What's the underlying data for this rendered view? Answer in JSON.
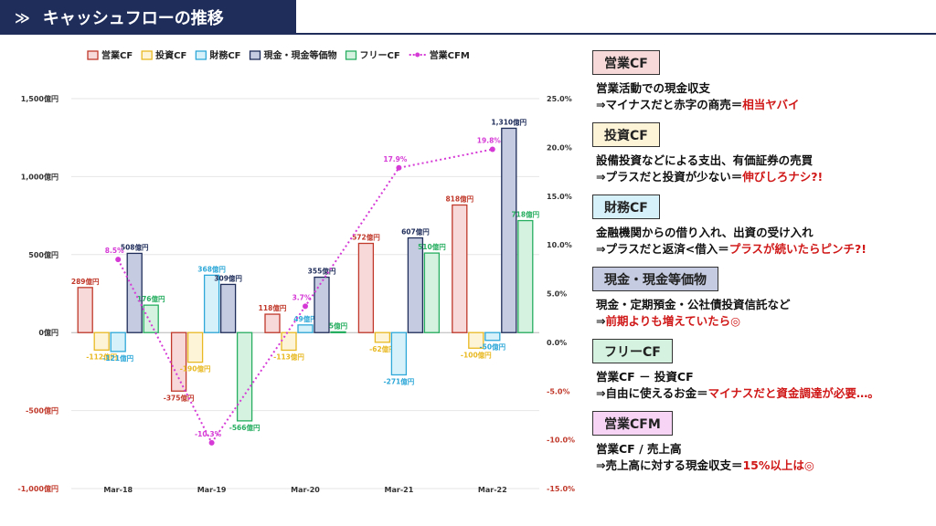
{
  "header": {
    "title": "キャッシュフローの推移",
    "icon": "double-chevron-right-icon"
  },
  "chart_data": {
    "type": "bar+line",
    "categories": [
      "Mar-18",
      "Mar-19",
      "Mar-20",
      "Mar-21",
      "Mar-22"
    ],
    "series": [
      {
        "name": "営業CF",
        "color": "#c0392b",
        "fill": "#f7d9d9",
        "values": [
          289,
          -375,
          118,
          572,
          818
        ],
        "labels": [
          "289億円",
          "-375億円",
          "118億円",
          "572億円",
          "818億円"
        ]
      },
      {
        "name": "投資CF",
        "color": "#e8b923",
        "fill": "#fdf3d6",
        "values": [
          -112,
          -190,
          -113,
          -62,
          -100
        ],
        "labels": [
          "-112億円",
          "-190億円",
          "-113億円",
          "-62億円",
          "-100億円"
        ]
      },
      {
        "name": "財務CF",
        "color": "#2ea8d8",
        "fill": "#d7f1fb",
        "values": [
          -121,
          368,
          49,
          -271,
          -50
        ],
        "labels": [
          "-121億円",
          "368億円",
          "49億円",
          "-271億円",
          "-50億円"
        ]
      },
      {
        "name": "現金・現金等価物",
        "color": "#1f2d5a",
        "fill": "#c5cbe0",
        "values": [
          508,
          309,
          355,
          607,
          1310
        ],
        "labels": [
          "508億円",
          "309億円",
          "355億円",
          "607億円",
          "1,310億円"
        ]
      },
      {
        "name": "フリーCF",
        "color": "#27ae60",
        "fill": "#d4f2df",
        "values": [
          176,
          -566,
          5,
          510,
          718
        ],
        "labels": [
          "176億円",
          "-566億円",
          "5億円",
          "510億円",
          "718億円"
        ]
      }
    ],
    "line": {
      "name": "営業CFM",
      "color": "#d63ad6",
      "values": [
        8.5,
        -10.3,
        3.7,
        17.9,
        19.8
      ],
      "labels": [
        "8.5%",
        "-10.3%",
        "3.7%",
        "17.9%",
        "19.8%"
      ]
    },
    "y_left": {
      "min": -1000,
      "max": 1500,
      "ticks": [
        -1000,
        -500,
        0,
        500,
        1000,
        1500
      ],
      "tick_labels": [
        "-1,000億円",
        "-500億円",
        "0億円",
        "500億円",
        "1,000億円",
        "1,500億円"
      ]
    },
    "y_right": {
      "min": -15,
      "max": 25,
      "ticks": [
        -15,
        -10,
        -5,
        0,
        5,
        10,
        15,
        20,
        25
      ],
      "tick_labels": [
        "-15.0%",
        "-10.0%",
        "-5.0%",
        "0.0%",
        "5.0%",
        "10.0%",
        "15.0%",
        "20.0%",
        "25.0%"
      ]
    },
    "legend_position": "top",
    "grid": true
  },
  "panel": {
    "sections": [
      {
        "label": "営業CF",
        "label_bg": "#f7d9d9",
        "lines": [
          {
            "text": "営業活動での現金収支"
          },
          {
            "text": "⇒マイナスだと赤字の商売＝",
            "highlight": "相当ヤバイ"
          }
        ]
      },
      {
        "label": "投資CF",
        "label_bg": "#fdf3d6",
        "lines": [
          {
            "text": "設備投資などによる支出、有価証券の売買"
          },
          {
            "text": "⇒プラスだと投資が少ない＝",
            "highlight": "伸びしろナシ?!"
          }
        ]
      },
      {
        "label": "財務CF",
        "label_bg": "#d7f1fb",
        "lines": [
          {
            "text": "金融機関からの借り入れ、出資の受け入れ"
          },
          {
            "text": "⇒プラスだと返済<借入＝",
            "highlight": "プラスが続いたらピンチ?!"
          }
        ]
      },
      {
        "label": "現金・現金等価物",
        "label_bg": "#c5cbe0",
        "lines": [
          {
            "text": "現金・定期預金・公社債投資信託など"
          },
          {
            "text": "⇒",
            "highlight": "前期よりも増えていたら◎"
          }
        ]
      },
      {
        "label": "フリーCF",
        "label_bg": "#d4f2df",
        "lines": [
          {
            "text": "営業CF － 投資CF"
          },
          {
            "text": "⇒自由に使えるお金＝",
            "highlight": "マイナスだと資金調達が必要…。"
          }
        ]
      },
      {
        "label": "営業CFM",
        "label_bg": "#f7d4f5",
        "lines": [
          {
            "text": "営業CF / 売上高"
          },
          {
            "text": "⇒売上高に対する現金収支＝",
            "highlight": "15%以上は◎"
          }
        ]
      }
    ]
  }
}
